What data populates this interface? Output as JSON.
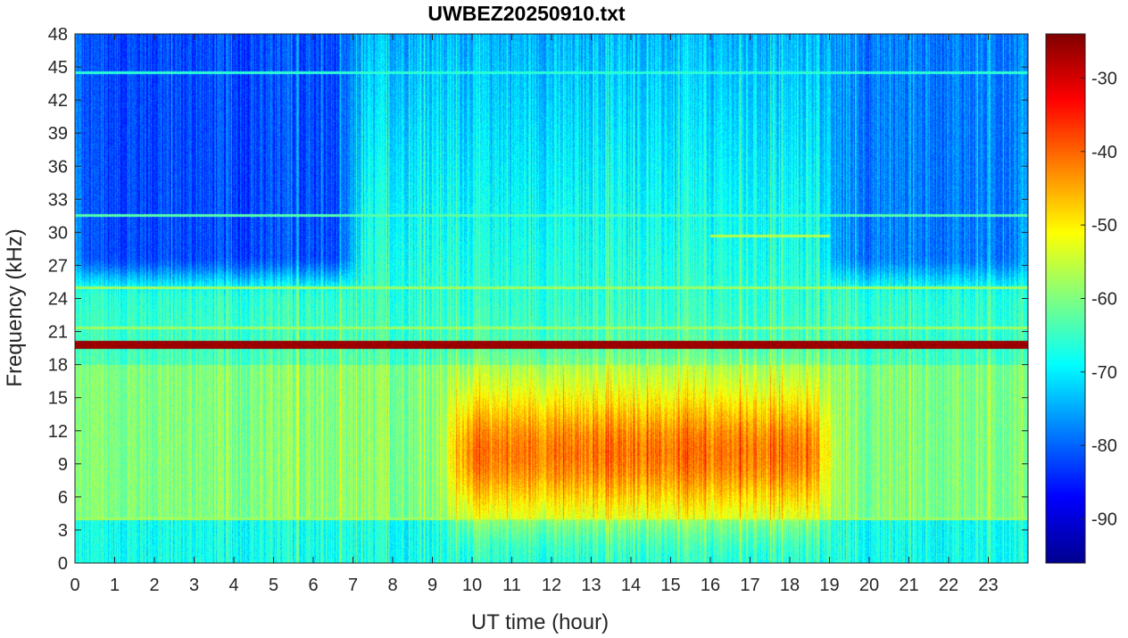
{
  "chart_data": {
    "type": "heatmap",
    "title": "UWBEZ20250910.txt",
    "xlabel": "UT time (hour)",
    "ylabel": "Frequency (kHz)",
    "xlim": [
      0,
      24
    ],
    "ylim": [
      0,
      48
    ],
    "x_ticks": [
      "0",
      "1",
      "2",
      "3",
      "4",
      "5",
      "6",
      "7",
      "8",
      "9",
      "10",
      "11",
      "12",
      "13",
      "14",
      "15",
      "16",
      "17",
      "18",
      "19",
      "20",
      "21",
      "22",
      "23"
    ],
    "y_ticks": [
      "0",
      "3",
      "6",
      "9",
      "12",
      "15",
      "18",
      "21",
      "24",
      "27",
      "30",
      "33",
      "36",
      "39",
      "42",
      "45",
      "48"
    ],
    "colorbar": {
      "range": [
        -96,
        -24
      ],
      "ticks": [
        "-30",
        "-40",
        "-50",
        "-60",
        "-70",
        "-80",
        "-90"
      ],
      "colormap": "jet"
    },
    "features": [
      {
        "kind": "narrowband_line",
        "frequency_khz": 19.8,
        "start_hour": 0,
        "end_hour": 24,
        "level_db": -26
      },
      {
        "kind": "broadband_enhancement",
        "frequency_range_khz": [
          4,
          18
        ],
        "peak_frequency_khz": 10,
        "start_hour": 9.5,
        "end_hour": 19,
        "peak_level_db": -42
      },
      {
        "kind": "quiet_region",
        "frequency_range_khz": [
          26,
          48
        ],
        "start_hour": 0,
        "end_hour": 7,
        "level_db": -82
      },
      {
        "kind": "quiet_region",
        "frequency_range_khz": [
          26,
          48
        ],
        "start_hour": 19,
        "end_hour": 24,
        "level_db": -78
      },
      {
        "kind": "narrowband_line",
        "frequency_khz": 25.0,
        "start_hour": 0,
        "end_hour": 24,
        "level_db": -58
      },
      {
        "kind": "narrowband_line",
        "frequency_khz": 21.3,
        "start_hour": 0,
        "end_hour": 24,
        "level_db": -58
      },
      {
        "kind": "narrowband_line",
        "frequency_khz": 4.0,
        "start_hour": 0,
        "end_hour": 24,
        "level_db": -58
      },
      {
        "kind": "narrowband_line",
        "frequency_khz": 31.5,
        "start_hour": 0,
        "end_hour": 24,
        "level_db": -63
      },
      {
        "kind": "narrowband_line",
        "frequency_khz": 29.7,
        "start_hour": 16,
        "end_hour": 19,
        "level_db": -56
      },
      {
        "kind": "narrowband_line",
        "frequency_khz": 44.5,
        "start_hour": 0,
        "end_hour": 24,
        "level_db": -66
      }
    ]
  }
}
